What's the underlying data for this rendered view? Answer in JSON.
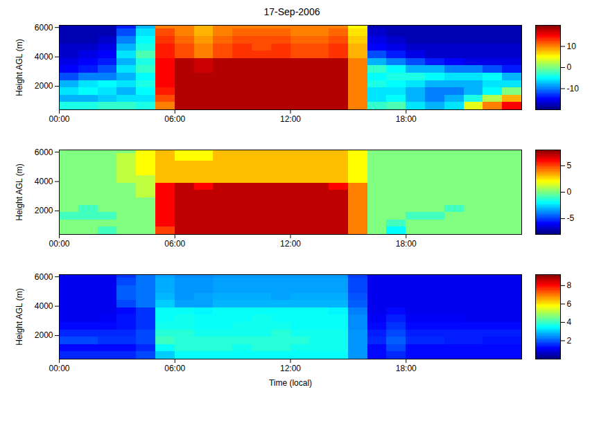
{
  "chart_data": [
    {
      "type": "heatmap",
      "title": "17-Sep-2006",
      "y_label": "Height AGL (m)",
      "xlim": [
        0,
        24
      ],
      "xticks": [
        {
          "value": 0,
          "label": "00:00"
        },
        {
          "value": 6,
          "label": "06:00"
        },
        {
          "value": 12,
          "label": "12:00"
        },
        {
          "value": 18,
          "label": "18:00"
        }
      ],
      "ylim": [
        400,
        6150
      ],
      "yticks": [
        2000,
        4000,
        6000
      ],
      "x_bins": [
        0,
        1,
        2,
        3,
        4,
        5,
        6,
        7,
        8,
        9,
        10,
        11,
        12,
        13,
        14,
        15,
        16,
        17,
        18,
        19,
        20,
        21,
        22,
        23,
        24
      ],
      "y_bins": [
        400,
        900,
        1400,
        1900,
        2400,
        2900,
        3400,
        3900,
        4400,
        4900,
        5400,
        5900,
        6150
      ],
      "z": [
        [
          -4,
          -4,
          -3,
          -3,
          -4,
          10,
          18,
          18,
          18,
          18,
          18,
          18,
          18,
          18,
          18,
          10,
          -3,
          -2,
          -6,
          -8,
          -6,
          4,
          10,
          15
        ],
        [
          -8,
          -8,
          -7,
          -6,
          -6,
          12,
          18,
          18,
          18,
          18,
          18,
          18,
          18,
          18,
          18,
          10,
          -6,
          -5,
          -8,
          -10,
          -8,
          -4,
          2,
          8
        ],
        [
          -6,
          -5,
          -6,
          -8,
          -5,
          14,
          18,
          18,
          18,
          18,
          18,
          18,
          18,
          18,
          18,
          10,
          -6,
          -6,
          -8,
          -10,
          -10,
          -8,
          -5,
          0
        ],
        [
          -8,
          -6,
          -5,
          -6,
          -4,
          15,
          18,
          18,
          18,
          18,
          18,
          18,
          18,
          18,
          18,
          10,
          -4,
          -5,
          -6,
          -8,
          -8,
          -8,
          -6,
          -6
        ],
        [
          -12,
          -10,
          -10,
          -8,
          -5,
          15,
          18,
          18,
          18,
          18,
          18,
          18,
          18,
          18,
          18,
          10,
          -5,
          -4,
          -4,
          -5,
          -6,
          -6,
          -5,
          -8
        ],
        [
          -15,
          -14,
          -12,
          -6,
          -3,
          15,
          18,
          17,
          18,
          18,
          18,
          18,
          18,
          18,
          18,
          10,
          -3,
          -5,
          -8,
          -8,
          -10,
          -10,
          -12,
          -14
        ],
        [
          -16,
          -15,
          -14,
          -8,
          -4,
          15,
          18,
          17,
          18,
          18,
          18,
          18,
          18,
          18,
          18,
          10,
          -8,
          -10,
          -12,
          -14,
          -15,
          -16,
          -16,
          -16
        ],
        [
          -17,
          -16,
          -15,
          -6,
          -2,
          14,
          12,
          10,
          12,
          13,
          13,
          13,
          12,
          12,
          13,
          8,
          -12,
          -14,
          -16,
          -17,
          -17,
          -17,
          -17,
          -17
        ],
        [
          -17,
          -17,
          -16,
          -8,
          -4,
          14,
          12,
          10,
          12,
          13,
          12,
          13,
          12,
          12,
          13,
          8,
          -15,
          -16,
          -17,
          -17,
          -17,
          -17,
          -17,
          -17
        ],
        [
          -18,
          -18,
          -17,
          -10,
          -5,
          13,
          11,
          9,
          11,
          12,
          12,
          12,
          11,
          11,
          12,
          7,
          -16,
          -17,
          -18,
          -18,
          -18,
          -18,
          -18,
          -18
        ],
        [
          -18,
          -18,
          -18,
          -12,
          -6,
          12,
          10,
          8,
          10,
          11,
          11,
          11,
          10,
          10,
          11,
          6,
          -17,
          -18,
          -18,
          -18,
          -18,
          -18,
          -18,
          -18
        ],
        [
          -18,
          -18,
          -18,
          -14,
          -8,
          10,
          10,
          8,
          10,
          10,
          10,
          10,
          10,
          10,
          10,
          5,
          -18,
          -18,
          -18,
          -18,
          -18,
          -18,
          -18,
          -18
        ]
      ],
      "colorbar_lim": [
        -20,
        20
      ],
      "colorbar_ticks": [
        -10,
        0,
        10
      ]
    },
    {
      "type": "heatmap",
      "y_label": "Height AGL (m)",
      "xlim": [
        0,
        24
      ],
      "xticks": [
        {
          "value": 0,
          "label": "00:00"
        },
        {
          "value": 6,
          "label": "06:00"
        },
        {
          "value": 12,
          "label": "12:00"
        },
        {
          "value": 18,
          "label": "18:00"
        }
      ],
      "ylim": [
        400,
        6150
      ],
      "yticks": [
        2000,
        4000,
        6000
      ],
      "x_bins": [
        0,
        1,
        2,
        3,
        4,
        5,
        6,
        7,
        8,
        9,
        10,
        11,
        12,
        13,
        14,
        15,
        16,
        17,
        18,
        19,
        20,
        21,
        22,
        23,
        24
      ],
      "y_bins": [
        400,
        900,
        1400,
        1900,
        2400,
        2900,
        3400,
        3900,
        4400,
        4900,
        5400,
        5900,
        6150
      ],
      "z": [
        [
          0,
          0,
          -1,
          0,
          0,
          5,
          7,
          7,
          7,
          7,
          7,
          7,
          7,
          7,
          7,
          4,
          0,
          -2,
          0,
          0,
          0,
          0,
          0,
          0
        ],
        [
          0,
          0,
          0,
          0,
          0,
          6,
          7,
          7,
          7,
          7,
          7,
          7,
          7,
          7,
          7,
          4,
          0,
          -1,
          0,
          0,
          0,
          0,
          0,
          0
        ],
        [
          -1,
          -1,
          -1,
          0,
          0,
          6,
          7,
          7,
          7,
          7,
          7,
          7,
          7,
          7,
          7,
          4,
          0,
          0,
          -1,
          -1,
          0,
          0,
          0,
          0
        ],
        [
          0,
          -1,
          0,
          0,
          0,
          6,
          7,
          7,
          7,
          7,
          7,
          7,
          7,
          7,
          7,
          4,
          0,
          0,
          0,
          0,
          -1,
          0,
          0,
          0
        ],
        [
          0,
          0,
          0,
          0,
          0,
          6,
          7,
          7,
          7,
          7,
          7,
          7,
          7,
          7,
          7,
          4,
          0,
          0,
          0,
          0,
          0,
          0,
          0,
          0
        ],
        [
          0,
          0,
          0,
          0,
          1,
          6,
          7,
          7,
          7,
          7,
          7,
          7,
          7,
          7,
          7,
          4,
          0,
          0,
          0,
          0,
          0,
          0,
          0,
          0
        ],
        [
          0,
          0,
          0,
          0,
          1,
          6,
          7,
          6,
          7,
          7,
          7,
          7,
          7,
          7,
          6,
          4,
          0,
          0,
          0,
          0,
          0,
          0,
          0,
          0
        ],
        [
          0,
          0,
          0,
          1,
          1,
          3,
          3,
          3,
          3,
          3,
          3,
          3,
          3,
          3,
          3,
          2,
          0,
          0,
          0,
          0,
          0,
          0,
          0,
          0
        ],
        [
          0,
          0,
          0,
          1,
          2,
          3,
          3,
          3,
          3,
          3,
          3,
          3,
          3,
          3,
          3,
          2,
          0,
          0,
          0,
          0,
          0,
          0,
          0,
          0
        ],
        [
          0,
          0,
          0,
          1,
          2,
          3,
          3,
          3,
          3,
          3,
          3,
          3,
          3,
          3,
          3,
          2,
          0,
          0,
          0,
          0,
          0,
          0,
          0,
          0
        ],
        [
          0,
          0,
          0,
          1,
          2,
          3,
          2,
          2,
          3,
          3,
          3,
          3,
          3,
          3,
          3,
          2,
          0,
          0,
          0,
          0,
          0,
          0,
          0,
          0
        ],
        [
          0,
          0,
          0,
          0,
          2,
          3,
          2,
          2,
          3,
          3,
          3,
          3,
          3,
          3,
          3,
          2,
          0,
          0,
          0,
          0,
          0,
          0,
          0,
          0
        ]
      ],
      "colorbar_lim": [
        -8,
        8
      ],
      "colorbar_ticks": [
        -5,
        0,
        5
      ]
    },
    {
      "type": "heatmap",
      "y_label": "Height AGL (m)",
      "x_label": "Time (local)",
      "xlim": [
        0,
        24
      ],
      "xticks": [
        {
          "value": 0,
          "label": "00:00"
        },
        {
          "value": 6,
          "label": "06:00"
        },
        {
          "value": 12,
          "label": "12:00"
        },
        {
          "value": 18,
          "label": "18:00"
        }
      ],
      "ylim": [
        400,
        6150
      ],
      "yticks": [
        2000,
        4000,
        6000
      ],
      "x_bins": [
        0,
        1,
        2,
        3,
        4,
        5,
        6,
        7,
        8,
        9,
        10,
        11,
        12,
        13,
        14,
        15,
        16,
        17,
        18,
        19,
        20,
        21,
        22,
        23,
        24
      ],
      "y_bins": [
        400,
        900,
        1400,
        1900,
        2400,
        2900,
        3400,
        3900,
        4400,
        4900,
        5400,
        5900,
        6150
      ],
      "z": [
        [
          1.5,
          1.5,
          1.5,
          1.5,
          1.8,
          3,
          3.5,
          3.5,
          3.5,
          3.5,
          3.5,
          3.5,
          3.5,
          3.5,
          3.5,
          2.5,
          1.2,
          1.5,
          1.2,
          1.2,
          1.2,
          1.2,
          1.2,
          1.2
        ],
        [
          1.2,
          1.2,
          1.2,
          1.2,
          1.5,
          3.5,
          3.8,
          3.8,
          3.8,
          3.6,
          3.8,
          3.8,
          3.6,
          3.6,
          3.6,
          2.5,
          1.2,
          1.8,
          1.2,
          1.2,
          1.2,
          1.2,
          1.2,
          1.2
        ],
        [
          1.8,
          1.8,
          1.6,
          1.6,
          1.8,
          4,
          3.8,
          3.8,
          3.8,
          3.8,
          3.8,
          3.8,
          3.8,
          3.6,
          3.6,
          2.5,
          1.5,
          2,
          1.5,
          1.5,
          1.4,
          1.4,
          1.3,
          1.3
        ],
        [
          1.5,
          1.5,
          1.5,
          1.5,
          1.8,
          3.8,
          3.8,
          3.6,
          3.6,
          3.6,
          3.6,
          3.8,
          3.6,
          3.6,
          3.6,
          2.5,
          1.4,
          1.8,
          1.4,
          1.4,
          1.4,
          1.4,
          1.4,
          1.4
        ],
        [
          1.2,
          1.2,
          1.2,
          1.3,
          1.6,
          3.6,
          3.6,
          3.5,
          3.5,
          3.6,
          3.6,
          3.6,
          3.5,
          3.5,
          3.5,
          2.4,
          1.2,
          1.6,
          1.2,
          1.2,
          1.2,
          1.2,
          1.2,
          1.2
        ],
        [
          1,
          1,
          1.1,
          1.3,
          1.6,
          3.5,
          3.6,
          3.5,
          3.5,
          3.5,
          3.6,
          3.5,
          3.5,
          3.5,
          3.5,
          2.4,
          1.1,
          1.4,
          1.1,
          1.1,
          1.1,
          1,
          1,
          1
        ],
        [
          1,
          1,
          1,
          1.2,
          1.6,
          3.5,
          3.5,
          3.4,
          3.5,
          3.5,
          3.5,
          3.5,
          3.5,
          3.5,
          3.4,
          2.3,
          1,
          1.2,
          1,
          1,
          1,
          1,
          1,
          1
        ],
        [
          1,
          1,
          1,
          1.8,
          2.2,
          3,
          2.6,
          2.6,
          2.8,
          2.8,
          2.8,
          2.8,
          2.8,
          2.8,
          2.8,
          2,
          1,
          1,
          1,
          1,
          1,
          1,
          1,
          1
        ],
        [
          1,
          1,
          1,
          2,
          2.2,
          2.8,
          2.5,
          2.6,
          2.7,
          2.7,
          2.7,
          2.6,
          2.7,
          2.7,
          2.7,
          1.9,
          1,
          1,
          1,
          1,
          1,
          1,
          1,
          1
        ],
        [
          1,
          1,
          1,
          2,
          2.2,
          2.7,
          2.5,
          2.5,
          2.6,
          2.6,
          2.6,
          2.6,
          2.6,
          2.6,
          2.6,
          1.8,
          1,
          1,
          1,
          1,
          1,
          1,
          1,
          1
        ],
        [
          1,
          1,
          1,
          1.8,
          2.2,
          2.7,
          2.5,
          2.5,
          2.6,
          2.6,
          2.6,
          2.6,
          2.6,
          2.6,
          2.6,
          1.8,
          1,
          1,
          1,
          1,
          1,
          1,
          1,
          1
        ],
        [
          1,
          1,
          1,
          1.6,
          2.2,
          2.6,
          2.4,
          2.4,
          2.5,
          2.5,
          2.5,
          2.5,
          2.5,
          2.5,
          2.5,
          1.7,
          1,
          1,
          1,
          1,
          1,
          1,
          1,
          1
        ]
      ],
      "colorbar_lim": [
        0,
        9.2
      ],
      "colorbar_ticks": [
        2,
        4,
        6,
        8
      ]
    }
  ]
}
